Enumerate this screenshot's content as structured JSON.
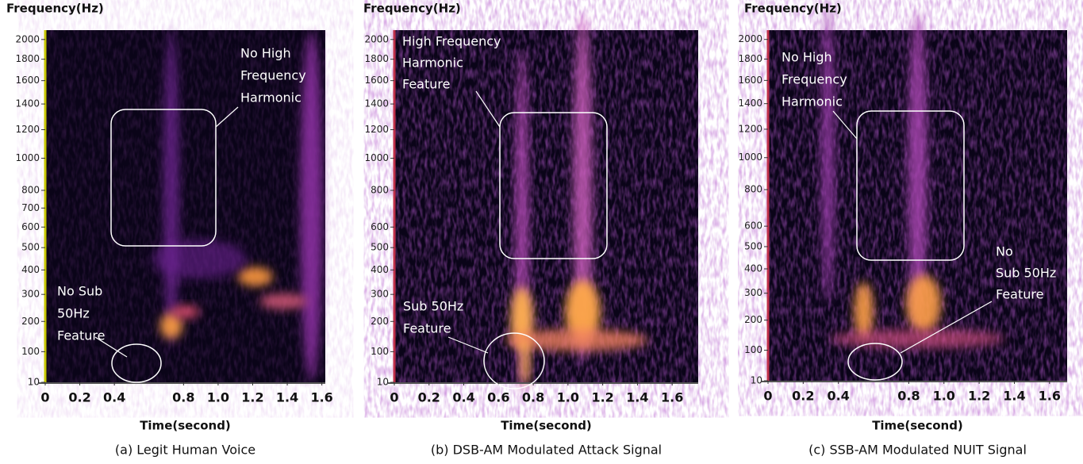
{
  "chart_data": [
    {
      "type": "spectrogram",
      "ylabel": "Frequency(Hz)",
      "xlabel": "Time(second)",
      "caption": "(a) Legit Human Voice",
      "yscale": "mel",
      "ylim": [
        10,
        2100
      ],
      "yticks": [
        10,
        100,
        200,
        300,
        400,
        500,
        600,
        700,
        800,
        1000,
        1200,
        1400,
        1600,
        1800,
        2000
      ],
      "xlim": [
        0,
        1.62
      ],
      "xticks": [
        0,
        0.2,
        0.4,
        0.8,
        {
          "value": 1,
          "label": "1.0"
        },
        1.2,
        1.4,
        1.6
      ],
      "annotations": [
        {
          "lines": [
            "No High",
            "Frequency",
            "Harmonic"
          ]
        },
        {
          "lines": [
            "No Sub",
            "50Hz",
            "Feature"
          ]
        }
      ]
    },
    {
      "type": "spectrogram",
      "ylabel": "Frequency(Hz)",
      "xlabel": "Time(second)",
      "caption": "(b) DSB-AM Modulated Attack Signal",
      "yscale": "mel",
      "ylim": [
        10,
        2100
      ],
      "yticks": [
        10,
        100,
        200,
        300,
        400,
        500,
        600,
        800,
        1000,
        1200,
        1400,
        1600,
        1800,
        2000
      ],
      "xlim": [
        0,
        1.75
      ],
      "xticks": [
        0,
        0.2,
        0.4,
        0.6,
        0.8,
        {
          "value": 1,
          "label": "1.0"
        },
        1.2,
        1.4,
        1.6
      ],
      "annotations": [
        {
          "lines": [
            "High Frequency",
            "Harmonic",
            "Feature"
          ]
        },
        {
          "lines": [
            "Sub 50Hz",
            "Feature"
          ]
        }
      ]
    },
    {
      "type": "spectrogram",
      "ylabel": "Frequency(Hz)",
      "xlabel": "Time(second)",
      "caption": "(c) SSB-AM Modulated NUIT Signal",
      "yscale": "mel",
      "ylim": [
        10,
        2100
      ],
      "yticks": [
        10,
        100,
        200,
        300,
        400,
        500,
        600,
        800,
        1000,
        1200,
        1400,
        1600,
        1800,
        2000
      ],
      "xlim": [
        0,
        1.7
      ],
      "xticks": [
        0,
        0.2,
        0.4,
        0.8,
        {
          "value": 1,
          "label": "1.0"
        },
        1.2,
        1.4,
        1.6
      ],
      "annotations": [
        {
          "lines": [
            "No High",
            "Frequency",
            "Harmonic"
          ]
        },
        {
          "lines": [
            "No",
            "Sub 50Hz",
            "Feature"
          ]
        }
      ]
    }
  ]
}
